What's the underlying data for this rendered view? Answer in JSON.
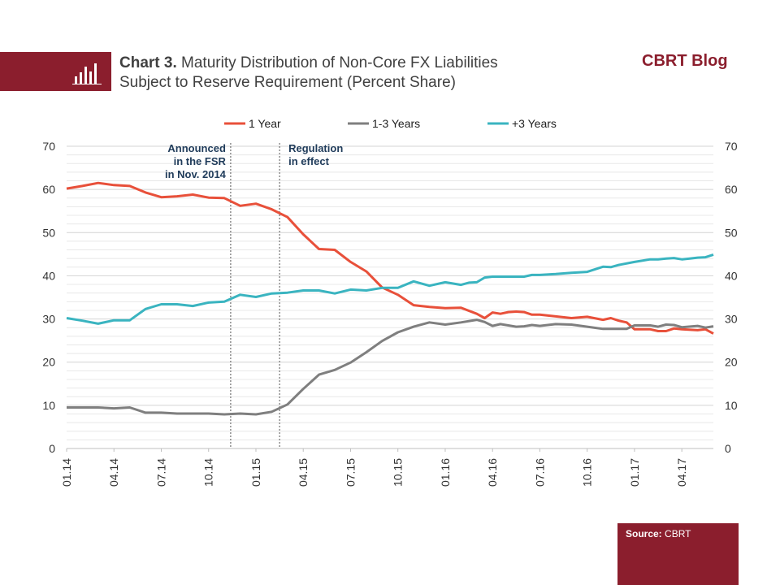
{
  "header": {
    "chart_label": "Chart 3.",
    "title_line1": "Maturity Distribution  of Non-Core FX Liabilities",
    "title_line2": "Subject to Reserve Requirement (Percent Share)",
    "brand": "CBRT Blog",
    "icon": "bar-chart-icon"
  },
  "source": {
    "label": "Source:",
    "value": "CBRT"
  },
  "colors": {
    "accent": "#8b1e2d",
    "one_year": "#e8503a",
    "one_three": "#7f7f7f",
    "three_plus": "#3ab4c0",
    "annotation": "#1f3b5a"
  },
  "chart_data": {
    "type": "line",
    "ylim": [
      0,
      70
    ],
    "yticks": [
      0,
      10,
      20,
      30,
      40,
      50,
      60,
      70
    ],
    "xlabel": "",
    "ylabel": "",
    "grid": true,
    "legend_position": "top",
    "x_tick_labels": [
      "01.14",
      "04.14",
      "07.14",
      "10.14",
      "01.15",
      "04.15",
      "07.15",
      "10.15",
      "01.16",
      "04.16",
      "07.16",
      "10.16",
      "01.17",
      "04.17"
    ],
    "series": [
      {
        "name": "1 Year",
        "points": [
          [
            0,
            60.2
          ],
          [
            1,
            60.8
          ],
          [
            2,
            61.5
          ],
          [
            3,
            61.0
          ],
          [
            4,
            60.8
          ],
          [
            5,
            59.3
          ],
          [
            6,
            58.2
          ],
          [
            7,
            58.4
          ],
          [
            8,
            58.8
          ],
          [
            9,
            58.1
          ],
          [
            10,
            58.0
          ],
          [
            11,
            56.2
          ],
          [
            12,
            56.7
          ],
          [
            13,
            55.4
          ],
          [
            14,
            53.6
          ],
          [
            15,
            49.6
          ],
          [
            16,
            46.2
          ],
          [
            17,
            46.0
          ],
          [
            18,
            43.2
          ],
          [
            19,
            41.0
          ],
          [
            20,
            37.3
          ],
          [
            21,
            35.6
          ],
          [
            22,
            33.2
          ],
          [
            23,
            32.8
          ],
          [
            24,
            32.5
          ],
          [
            25,
            32.6
          ],
          [
            26,
            31.2
          ],
          [
            26.5,
            30.2
          ],
          [
            27,
            31.5
          ],
          [
            27.5,
            31.2
          ],
          [
            28,
            31.6
          ],
          [
            28.5,
            31.7
          ],
          [
            29,
            31.6
          ],
          [
            29.5,
            31.0
          ],
          [
            30,
            31.0
          ],
          [
            31,
            30.6
          ],
          [
            32,
            30.2
          ],
          [
            33,
            30.5
          ],
          [
            34,
            29.8
          ],
          [
            34.5,
            30.2
          ],
          [
            35,
            29.6
          ],
          [
            35.5,
            29.2
          ],
          [
            36,
            27.6
          ],
          [
            37,
            27.6
          ],
          [
            37.5,
            27.2
          ],
          [
            38,
            27.2
          ],
          [
            38.5,
            27.8
          ],
          [
            39,
            27.6
          ],
          [
            40,
            27.4
          ],
          [
            40.5,
            27.6
          ],
          [
            41,
            26.6
          ]
        ]
      },
      {
        "name": "1-3 Years",
        "points": [
          [
            0,
            9.5
          ],
          [
            1,
            9.5
          ],
          [
            2,
            9.5
          ],
          [
            3,
            9.3
          ],
          [
            4,
            9.5
          ],
          [
            5,
            8.3
          ],
          [
            6,
            8.3
          ],
          [
            7,
            8.1
          ],
          [
            8,
            8.1
          ],
          [
            9,
            8.1
          ],
          [
            10,
            7.9
          ],
          [
            11,
            8.1
          ],
          [
            12,
            7.9
          ],
          [
            13,
            8.5
          ],
          [
            14,
            10.2
          ],
          [
            15,
            13.8
          ],
          [
            16,
            17.1
          ],
          [
            17,
            18.2
          ],
          [
            18,
            19.9
          ],
          [
            19,
            22.3
          ],
          [
            20,
            24.9
          ],
          [
            21,
            26.9
          ],
          [
            22,
            28.2
          ],
          [
            23,
            29.2
          ],
          [
            24,
            28.7
          ],
          [
            25,
            29.2
          ],
          [
            26,
            29.8
          ],
          [
            26.5,
            29.3
          ],
          [
            27,
            28.4
          ],
          [
            27.5,
            28.8
          ],
          [
            28,
            28.5
          ],
          [
            28.5,
            28.2
          ],
          [
            29,
            28.3
          ],
          [
            29.5,
            28.6
          ],
          [
            30,
            28.4
          ],
          [
            31,
            28.8
          ],
          [
            32,
            28.7
          ],
          [
            33,
            28.2
          ],
          [
            34,
            27.7
          ],
          [
            35,
            27.7
          ],
          [
            35.5,
            27.7
          ],
          [
            36,
            28.5
          ],
          [
            37,
            28.5
          ],
          [
            37.5,
            28.2
          ],
          [
            38,
            28.7
          ],
          [
            38.5,
            28.6
          ],
          [
            39,
            28.1
          ],
          [
            40,
            28.4
          ],
          [
            40.5,
            28.0
          ],
          [
            41,
            28.3
          ]
        ]
      },
      {
        "name": "+3 Years",
        "points": [
          [
            0,
            30.2
          ],
          [
            1,
            29.6
          ],
          [
            2,
            28.9
          ],
          [
            3,
            29.7
          ],
          [
            4,
            29.7
          ],
          [
            5,
            32.3
          ],
          [
            6,
            33.4
          ],
          [
            7,
            33.4
          ],
          [
            8,
            33.0
          ],
          [
            9,
            33.8
          ],
          [
            10,
            34.0
          ],
          [
            11,
            35.6
          ],
          [
            12,
            35.1
          ],
          [
            13,
            35.9
          ],
          [
            14,
            36.1
          ],
          [
            15,
            36.6
          ],
          [
            16,
            36.6
          ],
          [
            17,
            35.9
          ],
          [
            18,
            36.8
          ],
          [
            19,
            36.6
          ],
          [
            20,
            37.2
          ],
          [
            21,
            37.2
          ],
          [
            22,
            38.7
          ],
          [
            23,
            37.7
          ],
          [
            24,
            38.5
          ],
          [
            25,
            37.9
          ],
          [
            25.5,
            38.4
          ],
          [
            26,
            38.5
          ],
          [
            26.5,
            39.6
          ],
          [
            27,
            39.8
          ],
          [
            28,
            39.8
          ],
          [
            29,
            39.8
          ],
          [
            29.5,
            40.2
          ],
          [
            30,
            40.2
          ],
          [
            31,
            40.4
          ],
          [
            32,
            40.7
          ],
          [
            33,
            40.9
          ],
          [
            34,
            42.1
          ],
          [
            34.5,
            42.0
          ],
          [
            35,
            42.5
          ],
          [
            36,
            43.2
          ],
          [
            37,
            43.8
          ],
          [
            37.5,
            43.8
          ],
          [
            38,
            44.0
          ],
          [
            38.5,
            44.1
          ],
          [
            39,
            43.8
          ],
          [
            39.5,
            44.0
          ],
          [
            40,
            44.2
          ],
          [
            40.5,
            44.3
          ],
          [
            41,
            44.9
          ]
        ]
      }
    ],
    "annotations": [
      {
        "lines": [
          "Announced",
          "in the FSR",
          "in Nov. 2014"
        ],
        "x": 10.4,
        "align": "right"
      },
      {
        "lines": [
          "Regulation",
          "in effect"
        ],
        "x": 13.5,
        "align": "left"
      }
    ]
  }
}
